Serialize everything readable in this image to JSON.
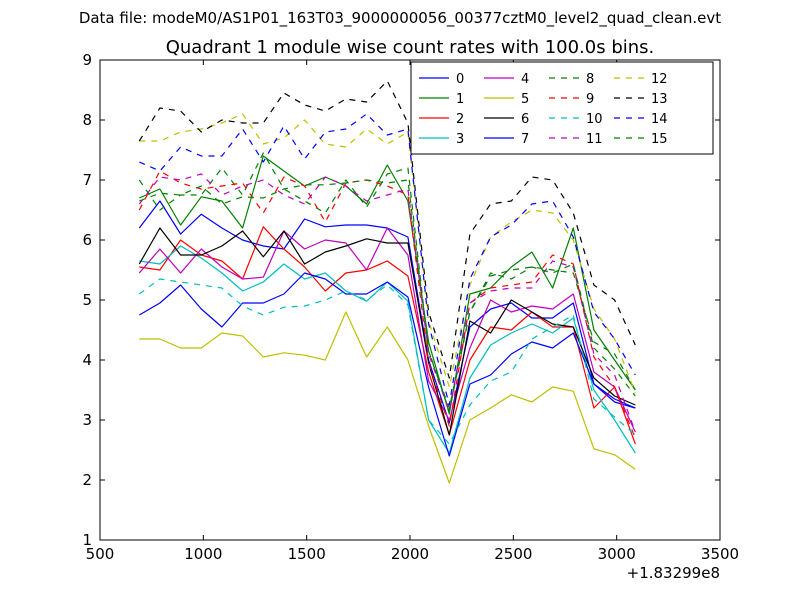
{
  "suptitle": "Data file: modeM0/AS1P01_163T03_9000000056_00377cztM0_level2_quad_clean.evt",
  "x_offset_label": "+1.83299e8",
  "chart_data": {
    "type": "line",
    "title": "Quadrant 1 module wise count rates with 100.0s bins.",
    "xlabel": "",
    "ylabel": "",
    "xlim": [
      500,
      3500
    ],
    "ylim": [
      1,
      9
    ],
    "x_ticks": [
      500,
      1000,
      1500,
      2000,
      2500,
      3000,
      3500
    ],
    "y_ticks": [
      1,
      2,
      3,
      4,
      5,
      6,
      7,
      8,
      9
    ],
    "grid": false,
    "legend_position": "upper right",
    "x": [
      690,
      790,
      890,
      990,
      1090,
      1190,
      1290,
      1390,
      1490,
      1590,
      1690,
      1790,
      1890,
      1990,
      2090,
      2190,
      2290,
      2390,
      2490,
      2590,
      2690,
      2790,
      2890,
      2990,
      3090
    ],
    "series": [
      {
        "name": "0",
        "color": "#0000ff",
        "dash": "solid",
        "values": [
          6.2,
          6.65,
          6.1,
          6.43,
          6.2,
          6.0,
          5.9,
          5.85,
          6.35,
          6.22,
          6.25,
          6.25,
          6.2,
          6.05,
          4.0,
          2.95,
          4.55,
          4.85,
          4.95,
          4.7,
          4.7,
          4.95,
          3.6,
          3.3,
          3.2
        ]
      },
      {
        "name": "1",
        "color": "#008000",
        "dash": "solid",
        "values": [
          6.7,
          6.85,
          6.25,
          6.72,
          6.65,
          6.2,
          7.4,
          7.15,
          6.9,
          7.05,
          6.9,
          6.6,
          7.25,
          6.65,
          4.3,
          3.1,
          5.1,
          5.2,
          5.55,
          5.8,
          5.2,
          6.2,
          4.5,
          4.0,
          3.5
        ]
      },
      {
        "name": "2",
        "color": "#ff0000",
        "dash": "solid",
        "values": [
          5.55,
          5.5,
          6.0,
          5.75,
          5.65,
          5.35,
          6.22,
          5.85,
          5.55,
          5.15,
          5.45,
          5.5,
          5.65,
          5.4,
          3.8,
          2.75,
          4.0,
          4.55,
          4.5,
          4.8,
          4.55,
          4.55,
          3.2,
          3.55,
          2.6
        ]
      },
      {
        "name": "3",
        "color": "#00bfbf",
        "dash": "solid",
        "values": [
          5.65,
          5.6,
          5.9,
          5.7,
          5.45,
          5.15,
          5.3,
          5.6,
          5.35,
          5.45,
          5.15,
          4.98,
          5.3,
          4.98,
          3.0,
          2.45,
          3.7,
          4.25,
          4.45,
          4.6,
          4.45,
          4.7,
          3.5,
          3.0,
          2.45
        ]
      },
      {
        "name": "4",
        "color": "#bf00bf",
        "dash": "solid",
        "values": [
          5.45,
          5.85,
          5.45,
          5.85,
          5.55,
          5.35,
          5.38,
          6.15,
          5.85,
          6.0,
          5.95,
          5.5,
          6.2,
          5.75,
          3.65,
          3.0,
          4.2,
          5.0,
          4.8,
          4.9,
          4.85,
          5.1,
          3.8,
          3.55,
          2.8
        ]
      },
      {
        "name": "5",
        "color": "#bfbf00",
        "dash": "solid",
        "values": [
          4.35,
          4.35,
          4.2,
          4.2,
          4.45,
          4.4,
          4.05,
          4.12,
          4.08,
          4.0,
          4.8,
          4.05,
          4.55,
          4.0,
          2.9,
          1.95,
          3.0,
          3.2,
          3.42,
          3.3,
          3.55,
          3.48,
          2.52,
          2.42,
          2.18
        ]
      },
      {
        "name": "6",
        "color": "#000000",
        "dash": "solid",
        "values": [
          5.6,
          6.2,
          5.75,
          5.75,
          5.9,
          6.15,
          5.72,
          6.15,
          5.6,
          5.8,
          5.9,
          6.02,
          5.95,
          5.95,
          3.95,
          2.75,
          4.65,
          4.45,
          5.0,
          4.8,
          4.6,
          4.55,
          3.7,
          3.4,
          3.25
        ]
      },
      {
        "name": "7",
        "color": "#0000ff",
        "dash": "solid",
        "values": [
          4.75,
          4.95,
          5.25,
          4.85,
          4.55,
          4.95,
          4.95,
          5.1,
          5.45,
          5.35,
          5.1,
          5.1,
          5.3,
          5.05,
          3.55,
          2.4,
          3.6,
          3.75,
          4.1,
          4.3,
          4.2,
          4.45,
          3.6,
          3.35,
          3.2
        ]
      },
      {
        "name": "8",
        "color": "#008000",
        "dash": "dashed",
        "values": [
          7.0,
          6.5,
          6.75,
          6.75,
          7.2,
          6.75,
          7.45,
          6.85,
          6.65,
          6.45,
          7.0,
          6.55,
          7.1,
          7.2,
          4.15,
          3.2,
          4.8,
          5.4,
          5.5,
          5.55,
          5.5,
          5.45,
          4.3,
          4.1,
          3.5
        ]
      },
      {
        "name": "9",
        "color": "#ff0000",
        "dash": "dashed",
        "values": [
          6.5,
          7.15,
          6.95,
          6.85,
          6.9,
          6.95,
          6.45,
          7.05,
          6.9,
          6.3,
          6.95,
          7.0,
          6.9,
          6.75,
          3.95,
          2.9,
          4.95,
          5.2,
          5.25,
          5.3,
          5.75,
          5.6,
          4.05,
          3.55,
          2.7
        ]
      },
      {
        "name": "10",
        "color": "#00bfbf",
        "dash": "dashed",
        "values": [
          5.1,
          5.35,
          5.3,
          5.25,
          5.2,
          4.9,
          4.75,
          4.88,
          4.9,
          5.0,
          5.15,
          5.0,
          5.25,
          4.92,
          3.0,
          2.6,
          3.25,
          3.65,
          3.8,
          4.35,
          4.55,
          4.75,
          3.35,
          3.05,
          2.75
        ]
      },
      {
        "name": "11",
        "color": "#bf00bf",
        "dash": "dashed",
        "values": [
          6.6,
          7.05,
          7.0,
          7.1,
          6.75,
          6.9,
          7.0,
          6.75,
          6.6,
          7.05,
          6.9,
          6.65,
          6.75,
          6.85,
          4.1,
          3.15,
          4.95,
          5.15,
          5.2,
          5.2,
          5.65,
          5.55,
          4.1,
          3.75,
          2.8
        ]
      },
      {
        "name": "12",
        "color": "#bfbf00",
        "dash": "dashed",
        "values": [
          7.65,
          7.65,
          7.8,
          7.85,
          7.95,
          8.1,
          7.6,
          7.7,
          8.0,
          7.6,
          7.55,
          7.85,
          7.6,
          7.8,
          4.65,
          3.55,
          5.25,
          6.05,
          6.3,
          6.5,
          6.45,
          6.0,
          4.85,
          4.35,
          3.45
        ]
      },
      {
        "name": "13",
        "color": "#000000",
        "dash": "dashed",
        "values": [
          7.65,
          8.2,
          8.15,
          7.8,
          8.0,
          7.95,
          7.95,
          8.45,
          8.25,
          8.15,
          8.35,
          8.3,
          8.65,
          7.95,
          4.8,
          3.7,
          6.1,
          6.6,
          6.65,
          7.05,
          7.0,
          6.45,
          5.25,
          5.0,
          4.25
        ]
      },
      {
        "name": "14",
        "color": "#0000ff",
        "dash": "dashed",
        "values": [
          7.3,
          7.15,
          7.55,
          7.4,
          7.4,
          7.85,
          7.3,
          7.9,
          7.35,
          7.8,
          7.85,
          8.1,
          7.75,
          7.85,
          4.6,
          3.25,
          5.35,
          6.05,
          6.25,
          6.6,
          6.65,
          6.05,
          4.8,
          4.35,
          3.75
        ]
      },
      {
        "name": "15",
        "color": "#008000",
        "dash": "dashed",
        "values": [
          6.65,
          6.78,
          6.75,
          6.9,
          6.6,
          6.72,
          6.7,
          6.85,
          6.92,
          6.92,
          6.95,
          7.0,
          6.95,
          7.0,
          4.15,
          3.15,
          4.8,
          5.45,
          5.35,
          5.55,
          5.45,
          5.6,
          4.2,
          3.85,
          3.4
        ]
      }
    ]
  }
}
